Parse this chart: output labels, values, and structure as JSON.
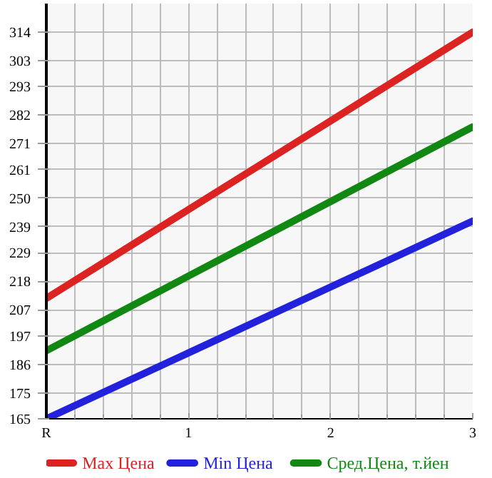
{
  "chart_data": {
    "type": "line",
    "categories": [
      "R",
      "1",
      "2",
      "3"
    ],
    "series": [
      {
        "name": "Max Цена",
        "color": "#dd2222",
        "values": [
          211.4,
          245.6,
          279.8,
          314
        ]
      },
      {
        "name": "Min Цена",
        "color": "#2222dd",
        "values": [
          165,
          190.4,
          215.8,
          241.2
        ]
      },
      {
        "name": "Сред.Цена, т.йен",
        "color": "#118811",
        "values": [
          191.2,
          220,
          248.7,
          277.5
        ]
      }
    ],
    "ylim": [
      165,
      325
    ],
    "yticks": [
      165,
      175,
      186,
      197,
      207,
      218,
      229,
      239,
      250,
      261,
      271,
      282,
      293,
      303,
      314
    ],
    "grid": true,
    "legend": "bottom",
    "marker": "none",
    "line_style": "solid"
  }
}
